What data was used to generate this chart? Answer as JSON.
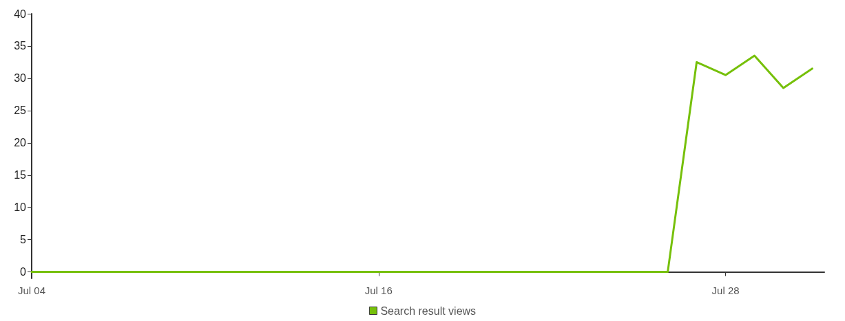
{
  "chart_data": {
    "type": "line",
    "x": [
      "--07-04",
      "--07-05",
      "--07-06",
      "--07-07",
      "--07-08",
      "--07-09",
      "--07-10",
      "--07-11",
      "--07-12",
      "--07-13",
      "--07-14",
      "--07-15",
      "--07-16",
      "--07-17",
      "--07-18",
      "--07-19",
      "--07-20",
      "--07-21",
      "--07-22",
      "--07-23",
      "--07-24",
      "--07-25",
      "--07-26",
      "--07-27",
      "--07-28",
      "--07-29",
      "--07-30",
      "--07-31"
    ],
    "series": [
      {
        "name": "Search result views",
        "color": "#76c00a",
        "values": [
          0,
          0,
          0,
          0,
          0,
          0,
          0,
          0,
          0,
          0,
          0,
          0,
          0,
          0,
          0,
          0,
          0,
          0,
          0,
          0,
          0,
          0,
          0,
          32.5,
          30.5,
          33.5,
          28.5,
          31.5
        ]
      }
    ],
    "xlim": [
      "--07-04",
      "--07-31T10:00"
    ],
    "xticks": [
      {
        "value": "--07-04",
        "label": "Jul 04"
      },
      {
        "value": "--07-16",
        "label": "Jul 16"
      },
      {
        "value": "--07-28",
        "label": "Jul 28"
      }
    ],
    "ylim": [
      -1,
      40
    ],
    "yticks": [
      0,
      5,
      10,
      15,
      20,
      25,
      30,
      35,
      40
    ],
    "grid": false,
    "legend": "bottom",
    "marker": "none",
    "line_style": "solid"
  }
}
